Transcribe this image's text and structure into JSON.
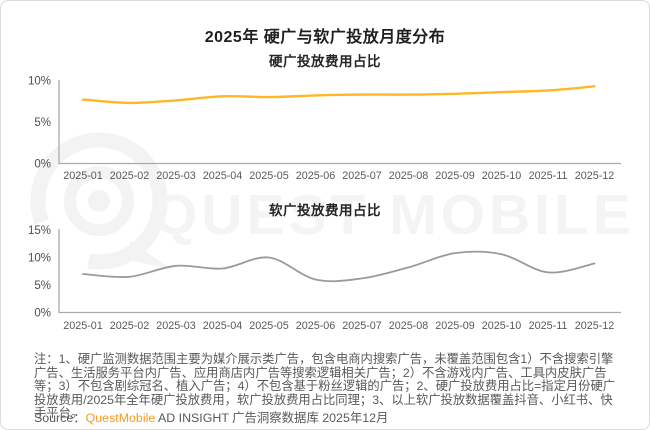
{
  "card": {
    "title": "2025年 硬广与软广投放月度分布",
    "watermark": "QUEST MOBILE",
    "note": "注：1、硬广监测数据范围主要为媒介展示类广告，包含电商内搜索广告，未覆盖范围包含1）不含搜索引擎广告、生活服务平台内广告、应用商店内广告等搜索逻辑相关广告；2）不含游戏内广告、工具内皮肤广告等；3）不包含剧综冠名、植入广告；4）不包含基于粉丝逻辑的广告；2、硬广投放费用占比=指定月份硬广投放费用/2025年全年硬广投放费用，软广投放费用占比同理；3、以上软广投放数据覆盖抖音、小红书、快手平台。",
    "source": {
      "label": "Source：",
      "brand": "QuestMobile",
      "rest": " AD INSIGHT 广告洞察数据库 2025年12月"
    }
  },
  "colors": {
    "hard_line": "#fdb827",
    "soft_line": "#9a9a9a",
    "axis": "#ababab",
    "tick_text": "#4d4d4d",
    "watermark": "#f3f3f3",
    "brand_orange": "#f99b1c"
  },
  "chart_data": [
    {
      "type": "line",
      "title": "硬广投放费用占比",
      "xlabel": "",
      "ylabel": "",
      "grid": false,
      "legend": "none",
      "ylim": [
        0,
        10
      ],
      "yticks": [
        0,
        5,
        10
      ],
      "ytick_labels": [
        "0%",
        "5%",
        "10%"
      ],
      "categories": [
        "2025-01",
        "2025-02",
        "2025-03",
        "2025-04",
        "2025-05",
        "2025-06",
        "2025-07",
        "2025-08",
        "2025-09",
        "2025-10",
        "2025-11",
        "2025-12"
      ],
      "series": [
        {
          "name": "硬广投放费用占比",
          "color": "#fdb827",
          "values": [
            7.7,
            7.3,
            7.6,
            8.1,
            8.0,
            8.2,
            8.3,
            8.3,
            8.4,
            8.6,
            8.8,
            9.3
          ]
        }
      ]
    },
    {
      "type": "line",
      "title": "软广投放费用占比",
      "xlabel": "",
      "ylabel": "",
      "grid": false,
      "legend": "none",
      "ylim": [
        0,
        15
      ],
      "yticks": [
        0,
        5,
        10,
        15
      ],
      "ytick_labels": [
        "0%",
        "5%",
        "10%",
        "15%"
      ],
      "categories": [
        "2025-01",
        "2025-02",
        "2025-03",
        "2025-04",
        "2025-05",
        "2025-06",
        "2025-07",
        "2025-08",
        "2025-09",
        "2025-10",
        "2025-11",
        "2025-12"
      ],
      "series": [
        {
          "name": "软广投放费用占比",
          "color": "#9a9a9a",
          "values": [
            7.0,
            6.5,
            8.5,
            8.0,
            10.0,
            6.0,
            6.2,
            8.2,
            10.8,
            10.6,
            7.3,
            8.9
          ]
        }
      ]
    }
  ]
}
